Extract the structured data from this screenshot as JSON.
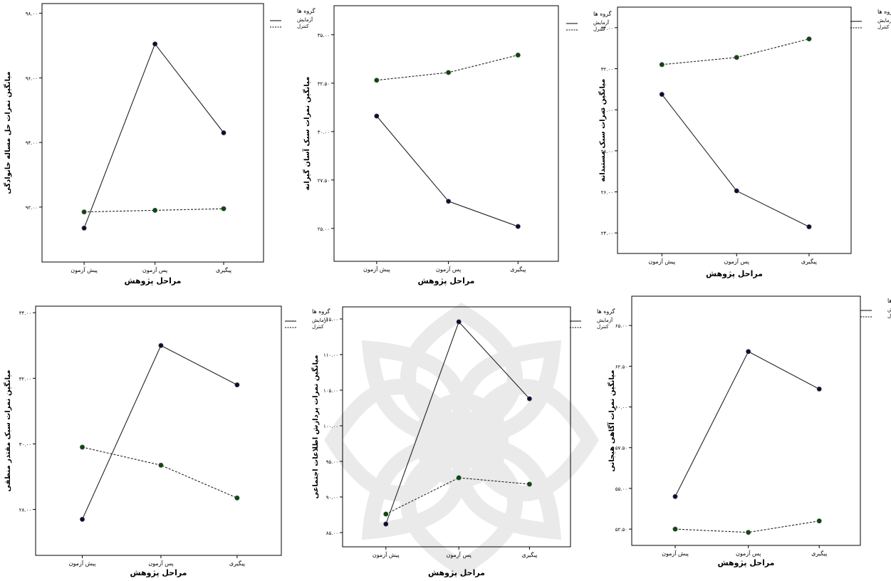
{
  "legend": {
    "title": "گروه ها",
    "experiment": "آزمایش",
    "control": "کنترل"
  },
  "chart_data": [
    {
      "type": "line",
      "xlabel": "مراحل پژوهش",
      "ylabel": "میانگین نمرات حل مساله خانوادگی",
      "categories": [
        "پیش آزمون",
        "پس آزمون",
        "پیگیری"
      ],
      "yticks": [
        92,
        94,
        96,
        98
      ],
      "yticklabels": [
        "۹۲.۰۰",
        "۹۴.۰۰",
        "۹۶.۰۰",
        "۹۸.۰۰"
      ],
      "ylim": [
        90.3,
        98.3
      ],
      "series": [
        {
          "name": "آزمایش",
          "style": "solid",
          "values": [
            91.35,
            97.05,
            94.3
          ]
        },
        {
          "name": "کنترل",
          "style": "dashed",
          "values": [
            91.85,
            91.9,
            91.95
          ]
        }
      ],
      "colors": {
        "experiment_marker": "#0b0b3a",
        "control_marker": "#0a4a0a"
      }
    },
    {
      "type": "line",
      "xlabel": "مراحل پژوهش",
      "ylabel": "میانگین نمرات سبک آسان گیرانه",
      "categories": [
        "پیش آزمون",
        "پس آزمون",
        "پیگیری"
      ],
      "yticks": [
        25,
        27.5,
        30,
        32.5,
        35
      ],
      "yticklabels": [
        "۲۵.۰۰",
        "۲۷.۵۰",
        "۳۰.۰۰",
        "۳۲.۵۰",
        "۳۵.۰۰"
      ],
      "ylim": [
        23.3,
        36.5
      ],
      "series": [
        {
          "name": "آزمایش",
          "style": "solid",
          "values": [
            30.8,
            26.4,
            25.1
          ]
        },
        {
          "name": "کنترل",
          "style": "dashed",
          "values": [
            32.65,
            33.05,
            33.95
          ]
        }
      ]
    },
    {
      "type": "line",
      "xlabel": "مراحل پژوهش",
      "ylabel": "میانگین نمرات سبک مستبدانه",
      "categories": [
        "پیش آزمون",
        "پس آزمون",
        "پیگیری"
      ],
      "yticks": [
        24,
        26,
        28,
        30,
        32,
        34
      ],
      "yticklabels": [
        "۲۴.۰۰",
        "۲۶.۰۰",
        "۲۸.۰۰",
        "۳۰.۰۰",
        "۳۲.۰۰",
        "۳۴.۰۰"
      ],
      "ylim": [
        23.0,
        35.0
      ],
      "series": [
        {
          "name": "آزمایش",
          "style": "solid",
          "values": [
            30.75,
            26.05,
            24.3
          ]
        },
        {
          "name": "کنترل",
          "style": "dashed",
          "values": [
            32.2,
            32.55,
            33.45
          ]
        }
      ]
    },
    {
      "type": "line",
      "xlabel": "مراحل پژوهش",
      "ylabel": "میانگین نمرات سبک مقتدر منطقی",
      "categories": [
        "پیش آزمون",
        "پس آزمون",
        "پیگیری"
      ],
      "yticks": [
        28,
        30,
        32,
        34
      ],
      "yticklabels": [
        "۲۸.۰۰",
        "۳۰.۰۰",
        "۳۲.۰۰",
        "۳۴.۰۰"
      ],
      "ylim": [
        26.6,
        34.2
      ],
      "series": [
        {
          "name": "آزمایش",
          "style": "solid",
          "values": [
            27.7,
            33.0,
            31.8
          ]
        },
        {
          "name": "کنترل",
          "style": "dashed",
          "values": [
            29.9,
            29.35,
            28.35
          ]
        }
      ]
    },
    {
      "type": "line",
      "xlabel": "مراحل پژوهش",
      "ylabel": "میانگین نمرات پردازش اطلاعات اجتماعی",
      "categories": [
        "پیش آزمون",
        "پس آزمون",
        "پیگیری"
      ],
      "yticks": [
        85,
        90,
        95,
        100,
        105,
        110,
        115
      ],
      "yticklabels": [
        "۸۵.۰۰",
        "۹۰.۰۰",
        "۹۵.۰۰",
        "۱۰۰.۰۰",
        "۱۰۵.۰۰",
        "۱۱۰.۰۰",
        "۱۱۵.۰۰"
      ],
      "ylim": [
        83.0,
        116.7
      ],
      "series": [
        {
          "name": "آزمایش",
          "style": "solid",
          "values": [
            86.2,
            114.6,
            103.8
          ]
        },
        {
          "name": "کنترل",
          "style": "dashed",
          "values": [
            87.6,
            92.7,
            91.8
          ]
        }
      ]
    },
    {
      "type": "line",
      "xlabel": "مراحل پژوهش",
      "ylabel": "میانگین نمرات آگاهی هیجانی",
      "categories": [
        "پیش آزمون",
        "پس آزمون",
        "پیگیری"
      ],
      "yticks": [
        52.5,
        55,
        57.5,
        60,
        62.5,
        65
      ],
      "yticklabels": [
        "۵۲.۵۰",
        "۵۵.۰۰",
        "۵۷.۵۰",
        "۶۰.۰۰",
        "۶۲.۵۰",
        "۶۵.۰۰"
      ],
      "ylim": [
        51.5,
        66.8
      ],
      "series": [
        {
          "name": "آزمایش",
          "style": "solid",
          "values": [
            54.5,
            63.4,
            61.1
          ]
        },
        {
          "name": "کنترل",
          "style": "dashed",
          "values": [
            52.5,
            52.3,
            53.0
          ]
        }
      ]
    }
  ]
}
